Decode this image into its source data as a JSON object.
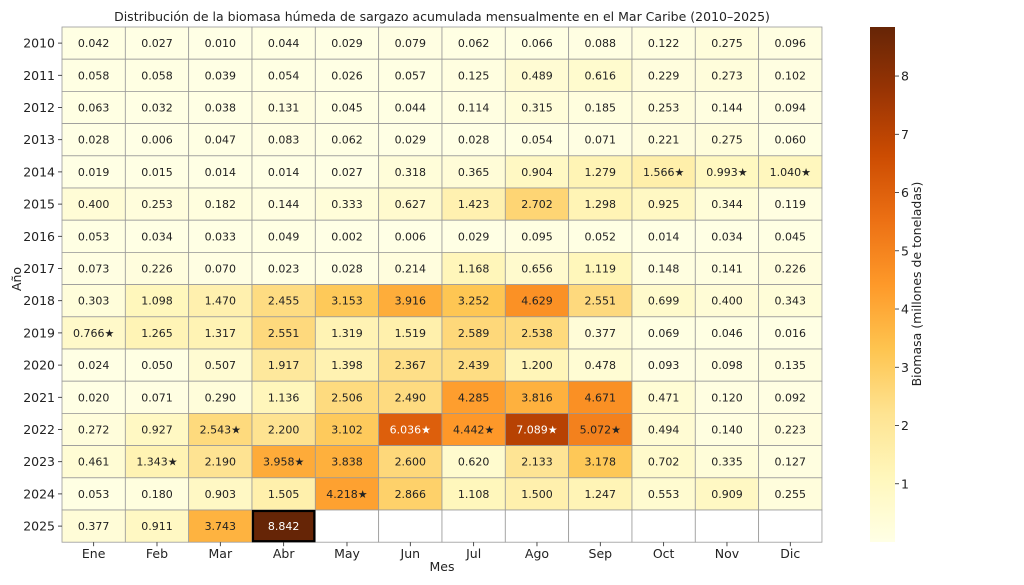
{
  "chart_data": {
    "type": "heatmap",
    "title": "Distribución de la biomasa húmeda de sargazo acumulada mensualmente en el Mar Caribe (2010–2025)",
    "xlabel": "Mes",
    "ylabel": "Año",
    "colorbar_label": "Biomasa (millones de toneladas)",
    "colorbar_ticks": [
      1,
      2,
      3,
      4,
      5,
      6,
      7,
      8
    ],
    "color_range": [
      0,
      8.842
    ],
    "months": [
      "Ene",
      "Feb",
      "Mar",
      "Abr",
      "May",
      "Jun",
      "Jul",
      "Ago",
      "Sep",
      "Oct",
      "Nov",
      "Dic"
    ],
    "years": [
      "2010",
      "2011",
      "2012",
      "2013",
      "2014",
      "2015",
      "2016",
      "2017",
      "2018",
      "2019",
      "2020",
      "2021",
      "2022",
      "2023",
      "2024",
      "2025"
    ],
    "values": [
      [
        0.042,
        0.027,
        0.01,
        0.044,
        0.029,
        0.079,
        0.062,
        0.066,
        0.088,
        0.122,
        0.275,
        0.096
      ],
      [
        0.058,
        0.058,
        0.039,
        0.054,
        0.026,
        0.057,
        0.125,
        0.489,
        0.616,
        0.229,
        0.273,
        0.102
      ],
      [
        0.063,
        0.032,
        0.038,
        0.131,
        0.045,
        0.044,
        0.114,
        0.315,
        0.185,
        0.253,
        0.144,
        0.094
      ],
      [
        0.028,
        0.006,
        0.047,
        0.083,
        0.062,
        0.029,
        0.028,
        0.054,
        0.071,
        0.221,
        0.275,
        0.06
      ],
      [
        0.019,
        0.015,
        0.014,
        0.014,
        0.027,
        0.318,
        0.365,
        0.904,
        1.279,
        1.566,
        0.993,
        1.04
      ],
      [
        0.4,
        0.253,
        0.182,
        0.144,
        0.333,
        0.627,
        1.423,
        2.702,
        1.298,
        0.925,
        0.344,
        0.119
      ],
      [
        0.053,
        0.034,
        0.033,
        0.049,
        0.002,
        0.006,
        0.029,
        0.095,
        0.052,
        0.014,
        0.034,
        0.045
      ],
      [
        0.073,
        0.226,
        0.07,
        0.023,
        0.028,
        0.214,
        1.168,
        0.656,
        1.119,
        0.148,
        0.141,
        0.226
      ],
      [
        0.303,
        1.098,
        1.47,
        2.455,
        3.153,
        3.916,
        3.252,
        4.629,
        2.551,
        0.699,
        0.4,
        0.343
      ],
      [
        0.766,
        1.265,
        1.317,
        2.551,
        1.319,
        1.519,
        2.589,
        2.538,
        0.377,
        0.069,
        0.046,
        0.016
      ],
      [
        0.024,
        0.05,
        0.507,
        1.917,
        1.398,
        2.367,
        2.439,
        1.2,
        0.478,
        0.093,
        0.098,
        0.135
      ],
      [
        0.02,
        0.071,
        0.29,
        1.136,
        2.506,
        2.49,
        4.285,
        3.816,
        4.671,
        0.471,
        0.12,
        0.092
      ],
      [
        0.272,
        0.927,
        2.543,
        2.2,
        3.102,
        6.036,
        4.442,
        7.089,
        5.072,
        0.494,
        0.14,
        0.223
      ],
      [
        0.461,
        1.343,
        2.19,
        3.958,
        3.838,
        2.6,
        0.62,
        2.133,
        3.178,
        0.702,
        0.335,
        0.127
      ],
      [
        0.053,
        0.18,
        0.903,
        1.505,
        4.218,
        2.866,
        1.108,
        1.5,
        1.247,
        0.553,
        0.909,
        0.255
      ],
      [
        0.377,
        0.911,
        3.743,
        8.842,
        null,
        null,
        null,
        null,
        null,
        null,
        null,
        null
      ]
    ],
    "starred": [
      [
        4,
        9
      ],
      [
        4,
        10
      ],
      [
        4,
        11
      ],
      [
        9,
        0
      ],
      [
        12,
        2
      ],
      [
        12,
        5
      ],
      [
        12,
        6
      ],
      [
        12,
        7
      ],
      [
        12,
        8
      ],
      [
        13,
        1
      ],
      [
        13,
        3
      ],
      [
        14,
        4
      ]
    ],
    "highlighted_max": [
      15,
      3
    ]
  }
}
